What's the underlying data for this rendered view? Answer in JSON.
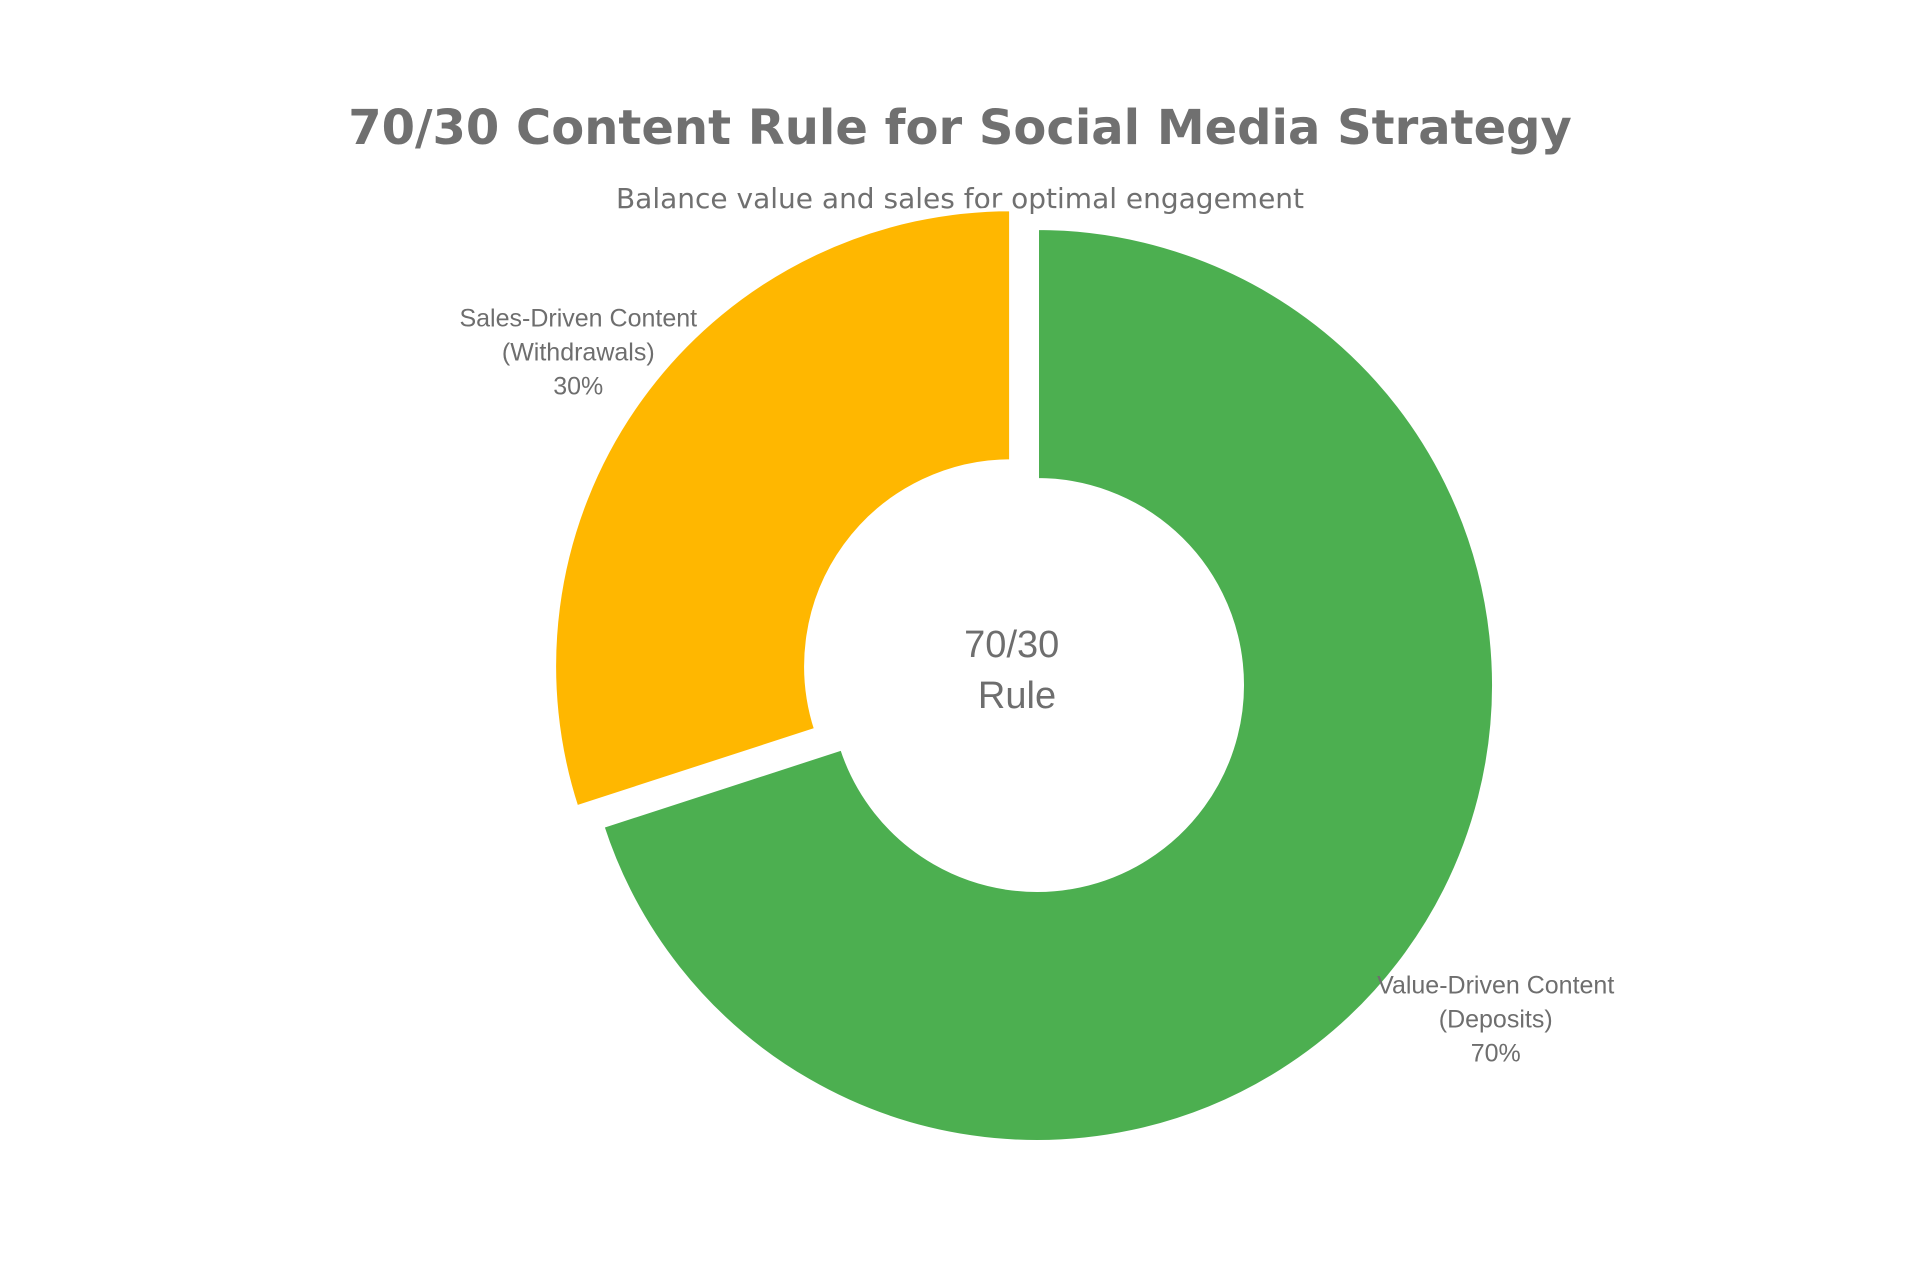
{
  "chart_data": {
    "type": "pie",
    "title": "70/30 Content Rule for Social Media Strategy",
    "subtitle": "Balance value and sales for optimal engagement",
    "hole": true,
    "center_text": [
      "70/30",
      "Rule"
    ],
    "slices": [
      {
        "label_lines": [
          "Value-Driven Content",
          "(Deposits)"
        ],
        "value": 70,
        "value_text": "70%",
        "color": "#4caf50"
      },
      {
        "label_lines": [
          "Sales-Driven Content",
          "(Withdrawals)"
        ],
        "value": 30,
        "value_text": "30%",
        "color": "#ffb700",
        "pulled": true
      }
    ]
  }
}
